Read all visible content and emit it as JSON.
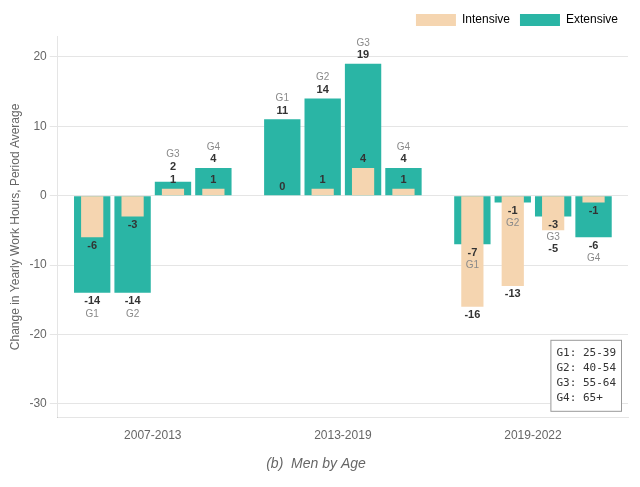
{
  "chart_data": {
    "type": "bar",
    "title": "(b)  Men by Age",
    "ylabel": "Change in Yearly Work Hours, Period Average",
    "categories": [
      "2007-2013",
      "2013-2019",
      "2019-2022"
    ],
    "groups": [
      "G1",
      "G2",
      "G3",
      "G4"
    ],
    "series": [
      {
        "name": "Intensive",
        "color": "#f5d5b0",
        "values": [
          [
            -6,
            -3,
            1,
            1
          ],
          [
            0,
            1,
            4,
            1
          ],
          [
            -16,
            -13,
            -5,
            -1
          ]
        ]
      },
      {
        "name": "Extensive",
        "color": "#2ab5a5",
        "values": [
          [
            -14,
            -14,
            2,
            4
          ],
          [
            11,
            14,
            19,
            4
          ],
          [
            -7,
            -1,
            -3,
            -6
          ]
        ]
      }
    ],
    "annotations": [
      "G1: 25-39",
      "G2: 40-54",
      "G3: 55-64",
      "G4: 65+"
    ],
    "ylim": [
      -32,
      23
    ],
    "yticks": [
      -30,
      -20,
      -10,
      0,
      10,
      20
    ],
    "grid": true,
    "legend": "top-right",
    "data_labels": true
  }
}
